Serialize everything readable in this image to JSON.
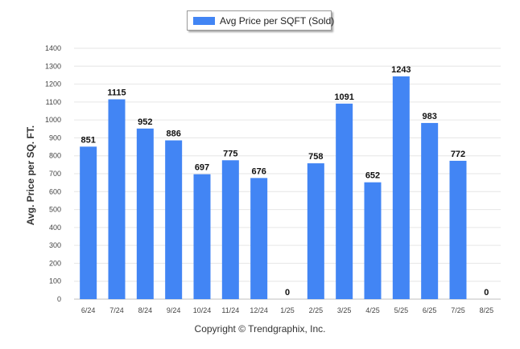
{
  "chart_data": {
    "type": "bar",
    "categories": [
      "6/24",
      "7/24",
      "8/24",
      "9/24",
      "10/24",
      "11/24",
      "12/24",
      "1/25",
      "2/25",
      "3/25",
      "4/25",
      "5/25",
      "6/25",
      "7/25",
      "8/25"
    ],
    "series": [
      {
        "name": "Avg Price per SQFT (Sold)",
        "values": [
          851,
          1115,
          952,
          886,
          697,
          775,
          676,
          0,
          758,
          1091,
          652,
          1243,
          983,
          772,
          0
        ],
        "color": "#4285f4"
      }
    ],
    "title": "",
    "xlabel": "",
    "ylabel": "Avg. Price per SQ. FT.",
    "ylim": [
      0,
      1400
    ],
    "yticks": [
      0,
      100,
      200,
      300,
      400,
      500,
      600,
      700,
      800,
      900,
      1000,
      1100,
      1200,
      1300,
      1400
    ],
    "grid": true,
    "legend_position": "top-center",
    "data_labels": true
  },
  "footer": {
    "copyright": "Copyright © Trendgraphix, Inc."
  }
}
